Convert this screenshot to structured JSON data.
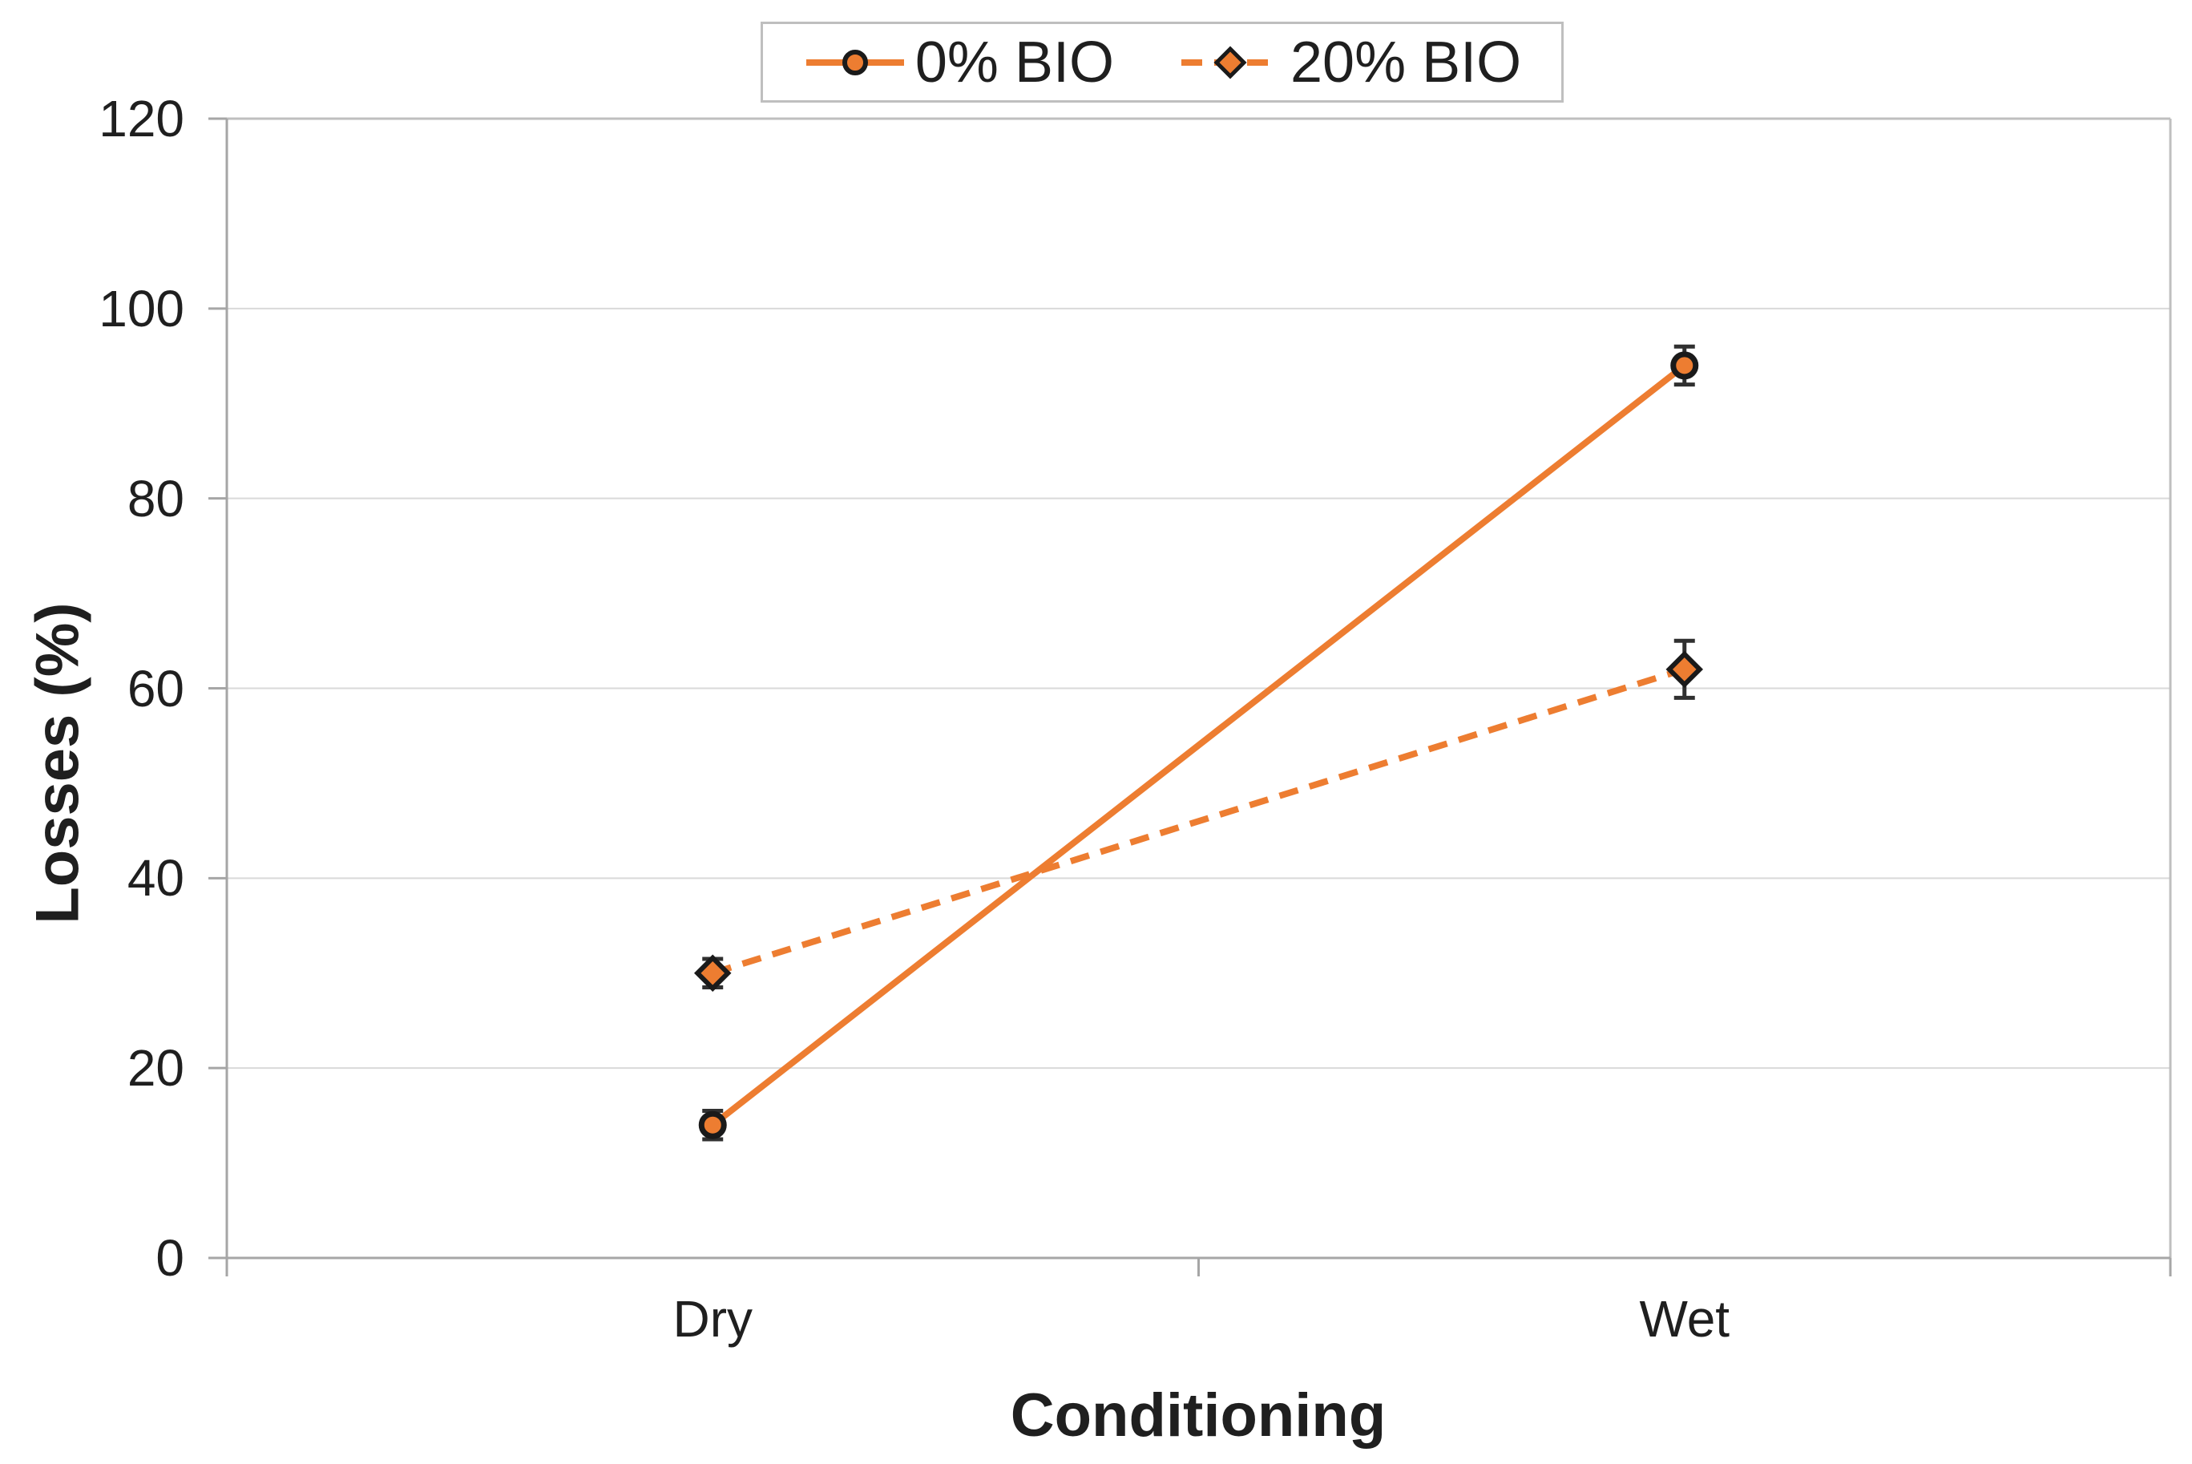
{
  "legend": {
    "position": "top",
    "items": [
      {
        "label": "0% BIO",
        "marker": "circle",
        "line_style": "solid"
      },
      {
        "label": "20% BIO",
        "marker": "diamond",
        "line_style": "dashed"
      }
    ]
  },
  "chart_data": {
    "type": "line",
    "title": "",
    "categories": [
      "Dry",
      "Wet"
    ],
    "series": [
      {
        "name": "0% BIO",
        "marker": "circle",
        "line_style": "solid",
        "color": "#ED7D31",
        "values": [
          14,
          94
        ],
        "error_bars": [
          1.5,
          2
        ]
      },
      {
        "name": "20% BIO",
        "marker": "diamond",
        "line_style": "dashed",
        "color": "#ED7D31",
        "values": [
          30,
          62
        ],
        "error_bars": [
          1.5,
          3
        ]
      }
    ],
    "xlabel": "Conditioning",
    "ylabel": "Losses (%)",
    "ylim": [
      0,
      120
    ],
    "ytick_step": 20,
    "yticks": [
      0,
      20,
      40,
      60,
      80,
      100,
      120
    ],
    "grid": "horizontal",
    "legend_position": "top-center"
  },
  "colors": {
    "series_orange": "#ED7D31",
    "marker_outline": "#1a1a1a",
    "gridline": "#D9D9D9",
    "axis_line": "#A6A6A6",
    "plot_border": "#BFBFBF",
    "error_bar": "#303030",
    "text": "#1f1f1f",
    "background": "#FFFFFF"
  }
}
